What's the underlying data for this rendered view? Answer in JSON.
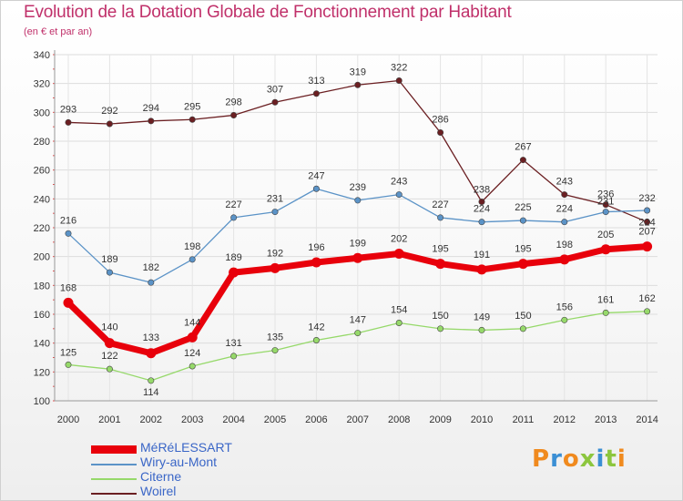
{
  "title": "Evolution de la Dotation Globale de Fonctionnement par Habitant",
  "subtitle": "(en € et par an)",
  "logo_text": "Proxiti",
  "chart_data": {
    "type": "line",
    "title": "Evolution de la Dotation Globale de Fonctionnement par Habitant",
    "ylabel": "(en € et par an)",
    "xlabel": "",
    "x": [
      "2000",
      "2001",
      "2002",
      "2003",
      "2004",
      "2005",
      "2006",
      "2007",
      "2008",
      "2009",
      "2010",
      "2011",
      "2012",
      "2013",
      "2014"
    ],
    "ylim": [
      100,
      340
    ],
    "yticks": [
      100,
      120,
      140,
      160,
      180,
      200,
      220,
      240,
      260,
      280,
      300,
      320,
      340
    ],
    "grid": true,
    "legend_position": "bottom-left",
    "series": [
      {
        "name": "MéRéLESSART",
        "color": "#e8000b",
        "thick": true,
        "values": [
          168,
          140,
          133,
          144,
          189,
          192,
          196,
          199,
          202,
          195,
          191,
          195,
          198,
          205,
          207
        ]
      },
      {
        "name": "Wiry-au-Mont",
        "color": "#5b93c7",
        "thick": false,
        "values": [
          216,
          189,
          182,
          198,
          227,
          231,
          247,
          239,
          243,
          227,
          224,
          225,
          224,
          231,
          232
        ]
      },
      {
        "name": "Citerne",
        "color": "#96d96a",
        "thick": false,
        "values": [
          125,
          122,
          114,
          124,
          131,
          135,
          142,
          147,
          154,
          150,
          149,
          150,
          156,
          161,
          162
        ]
      },
      {
        "name": "Woirel",
        "color": "#6b1f22",
        "thick": false,
        "values": [
          293,
          292,
          294,
          295,
          298,
          307,
          313,
          319,
          322,
          286,
          238,
          267,
          243,
          236,
          224
        ]
      }
    ]
  }
}
